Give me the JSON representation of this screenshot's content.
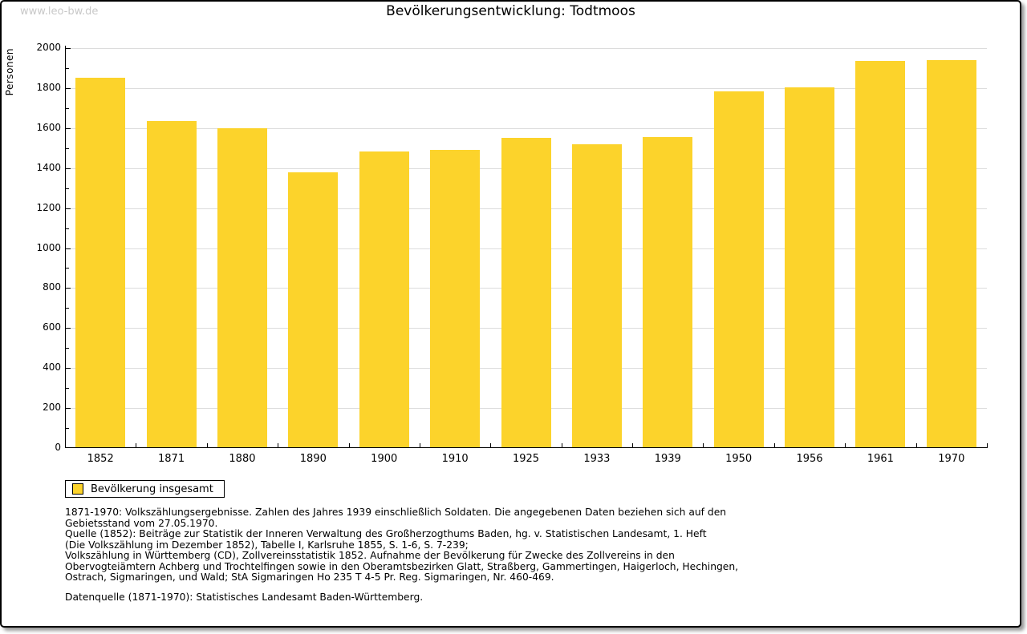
{
  "watermark": "www.leo-bw.de",
  "title": "Bevölkerungsentwicklung: Todtmoos",
  "legend": {
    "label": "Bevölkerung insgesamt",
    "swatch_color": "#fcd32b"
  },
  "chart_data": {
    "type": "bar",
    "title": "Bevölkerungsentwicklung: Todtmoos",
    "xlabel": "",
    "ylabel": "Personen",
    "categories": [
      "1852",
      "1871",
      "1880",
      "1890",
      "1900",
      "1910",
      "1925",
      "1933",
      "1939",
      "1950",
      "1956",
      "1961",
      "1970"
    ],
    "values": [
      1850,
      1635,
      1600,
      1380,
      1485,
      1490,
      1550,
      1520,
      1555,
      1785,
      1805,
      1935,
      1940
    ],
    "series_name": "Bevölkerung insgesamt",
    "ylim": [
      0,
      2000
    ],
    "ytick_step": 200,
    "yminor_step": 100,
    "grid": true,
    "bar_color": "#fcd32b",
    "gridline_color": "#dcdcdc",
    "legend_position": "bottom-left"
  },
  "footnotes": {
    "lines": [
      "1871-1970: Volkszählungsergebnisse. Zahlen des Jahres 1939 einschließlich Soldaten. Die angegebenen Daten beziehen sich auf den",
      "Gebietsstand vom 27.05.1970.",
      "Quelle (1852): Beiträge zur Statistik der Inneren Verwaltung des Großherzogthums Baden, hg. v. Statistischen Landesamt, 1. Heft",
      "(Die Volkszählung im Dezember 1852), Tabelle I, Karlsruhe 1855, S. 1-6, S. 7-239;",
      "Volkszählung in Württemberg (CD), Zollvereinsstatistik 1852. Aufnahme der Bevölkerung für Zwecke des Zollvereins in den",
      "Obervogteiämtern Achberg und Trochtelfingen sowie in den Oberamtsbezirken Glatt, Straßberg, Gammertingen, Haigerloch, Hechingen,",
      "Ostrach, Sigmaringen, und Wald; StA Sigmaringen Ho 235 T 4-5 Pr. Reg. Sigmaringen, Nr. 460-469."
    ],
    "datasource": "Datenquelle (1871-1970): Statistisches Landesamt Baden-Württemberg."
  }
}
